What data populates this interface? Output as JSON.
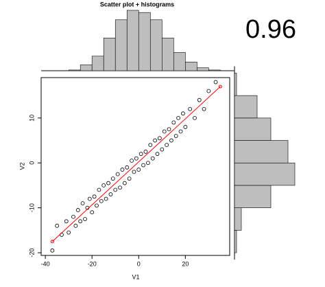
{
  "chart_data": {
    "type": "scatter",
    "title": "Scatter plot + histograms",
    "annotation": "0.96",
    "x_label": "V1",
    "y_label": "V2",
    "xlim": [
      -41.8,
      39
    ],
    "ylim": [
      -20.6,
      19
    ],
    "xticks": [
      -40,
      -20,
      0,
      20
    ],
    "yticks": [
      -20,
      -10,
      0,
      10
    ],
    "point_color": "#000000",
    "x": [
      -37,
      -35,
      -33,
      -31,
      -30,
      -28,
      -27,
      -26,
      -25,
      -24,
      -23,
      -22,
      -21,
      -20,
      -19,
      -18,
      -17,
      -16,
      -15,
      -14,
      -13,
      -12,
      -11,
      -10,
      -9,
      -8,
      -7,
      -6,
      -5,
      -4,
      -3,
      -2,
      -1,
      0,
      1,
      2,
      3,
      4,
      5,
      6,
      7,
      8,
      9,
      10,
      11,
      12,
      13,
      14,
      15,
      16,
      17,
      18,
      19,
      20,
      22,
      24,
      26,
      28,
      30,
      33
    ],
    "y": [
      -19.5,
      -14,
      -16,
      -13,
      -15.5,
      -12,
      -14,
      -10.5,
      -13,
      -9,
      -12.5,
      -10,
      -8,
      -11,
      -7.5,
      -9.5,
      -6,
      -8.5,
      -5,
      -8,
      -4.5,
      -7,
      -3.5,
      -6,
      -2.5,
      -5.5,
      -1.5,
      -4.5,
      -1,
      -3.5,
      0.5,
      -2,
      1,
      -1.5,
      2,
      -0.5,
      2.5,
      0,
      4,
      1,
      5,
      2,
      5.5,
      3,
      7,
      4,
      7.5,
      5,
      9,
      6,
      10,
      7,
      11,
      8,
      12,
      10,
      14,
      12,
      16,
      18
    ],
    "fit_line": {
      "color": "#ff0000",
      "x": [
        -37,
        35
      ],
      "y": [
        -17.5,
        17
      ]
    },
    "hist_x": {
      "color": "#bebebe",
      "bins": [
        -30,
        -25,
        -20,
        -15,
        -10,
        -5,
        0,
        5,
        10,
        15,
        20,
        25,
        30,
        35
      ],
      "counts": [
        1,
        8,
        20,
        45,
        70,
        83,
        80,
        70,
        45,
        25,
        12,
        4,
        1
      ]
    },
    "hist_y": {
      "color": "#bebebe",
      "bins": [
        -20,
        -15,
        -10,
        -5,
        0,
        5,
        10,
        15,
        20
      ],
      "counts": [
        3,
        10,
        53,
        88,
        78,
        53,
        33,
        3
      ]
    }
  }
}
